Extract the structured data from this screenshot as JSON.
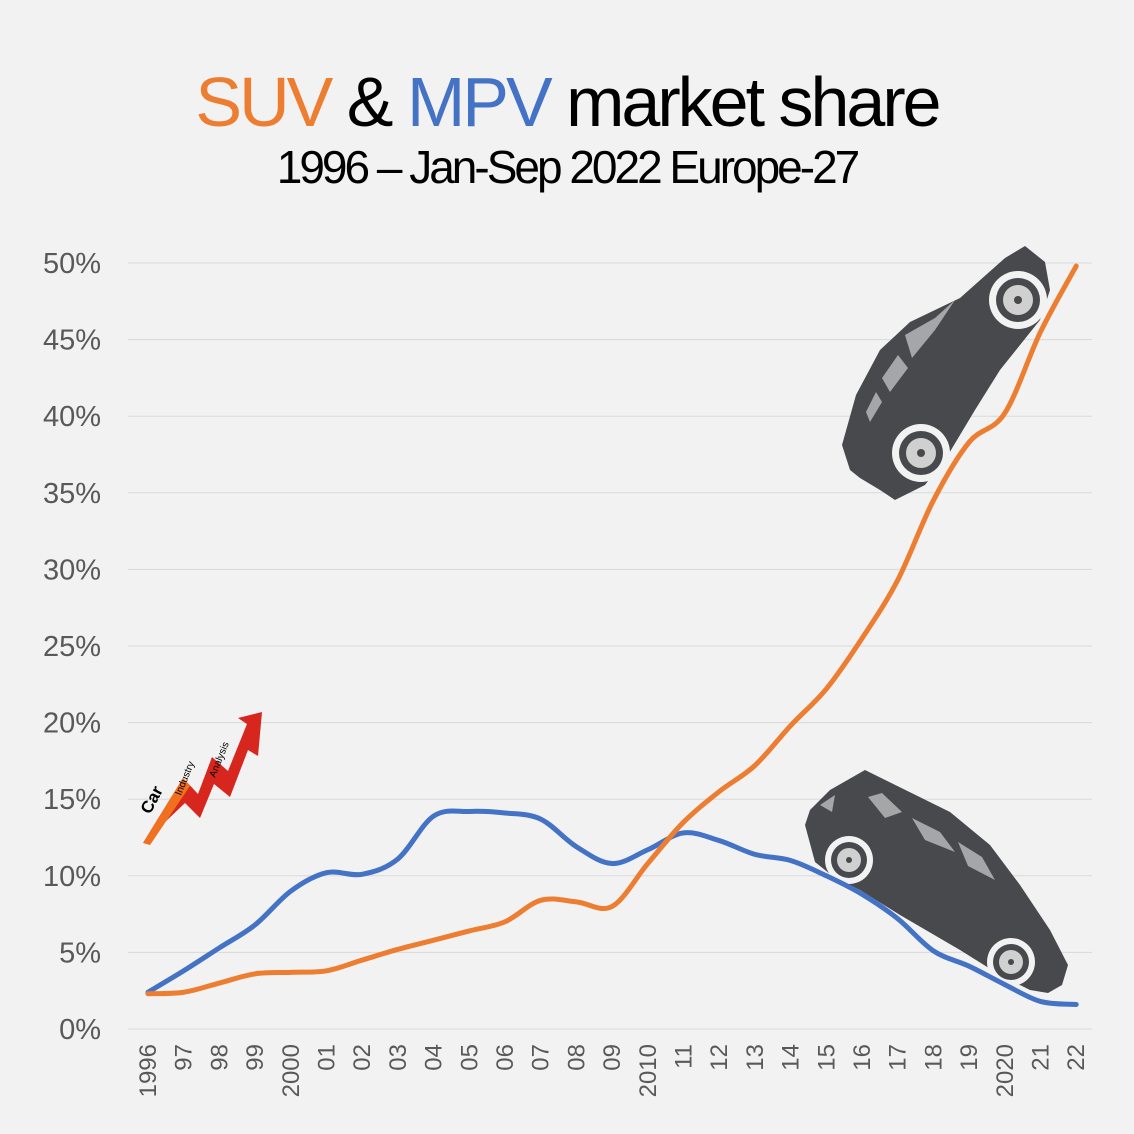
{
  "title": {
    "suv_word": "SUV",
    "amp": " & ",
    "mpv_word": "MPV",
    "rest": " market share"
  },
  "subtitle": "1996 – Jan-Sep 2022 Europe-27",
  "logo": {
    "text": "Car Industry Analysis",
    "icon": "red-arrow-logo-icon"
  },
  "colors": {
    "suv": "#ed7d31",
    "mpv": "#4472c4",
    "grid": "#d9d9d9",
    "background": "#f2f2f2",
    "car": "#48494c"
  },
  "icons": [
    "suv-car-icon",
    "mpv-van-icon"
  ],
  "chart_data": {
    "type": "line",
    "categories": [
      "1996",
      "97",
      "98",
      "99",
      "2000",
      "01",
      "02",
      "03",
      "04",
      "05",
      "06",
      "07",
      "08",
      "09",
      "2010",
      "11",
      "12",
      "13",
      "14",
      "15",
      "16",
      "17",
      "18",
      "19",
      "2020",
      "21",
      "22"
    ],
    "ylim": [
      0,
      50
    ],
    "yticks": [
      0,
      5,
      10,
      15,
      20,
      25,
      30,
      35,
      40,
      45,
      50
    ],
    "ytick_labels": [
      "0%",
      "5%",
      "10%",
      "15%",
      "20%",
      "25%",
      "30%",
      "35%",
      "40%",
      "45%",
      "50%"
    ],
    "grid": true,
    "series": [
      {
        "name": "SUV",
        "color": "#ed7d31",
        "values": [
          2.3,
          2.4,
          3.0,
          3.6,
          3.7,
          3.8,
          4.5,
          5.2,
          5.8,
          6.4,
          7.0,
          8.4,
          8.3,
          8.0,
          10.8,
          13.5,
          15.5,
          17.2,
          19.8,
          22.2,
          25.5,
          29.3,
          34.5,
          38.3,
          40.2,
          45.5,
          49.8
        ]
      },
      {
        "name": "MPV",
        "color": "#4472c4",
        "values": [
          2.4,
          3.8,
          5.3,
          6.8,
          9.0,
          10.2,
          10.1,
          11.1,
          13.9,
          14.2,
          14.1,
          13.7,
          11.9,
          10.8,
          11.7,
          12.8,
          12.3,
          11.4,
          11.0,
          10.0,
          8.8,
          7.2,
          5.1,
          4.1,
          2.9,
          1.8,
          1.6
        ]
      }
    ]
  }
}
